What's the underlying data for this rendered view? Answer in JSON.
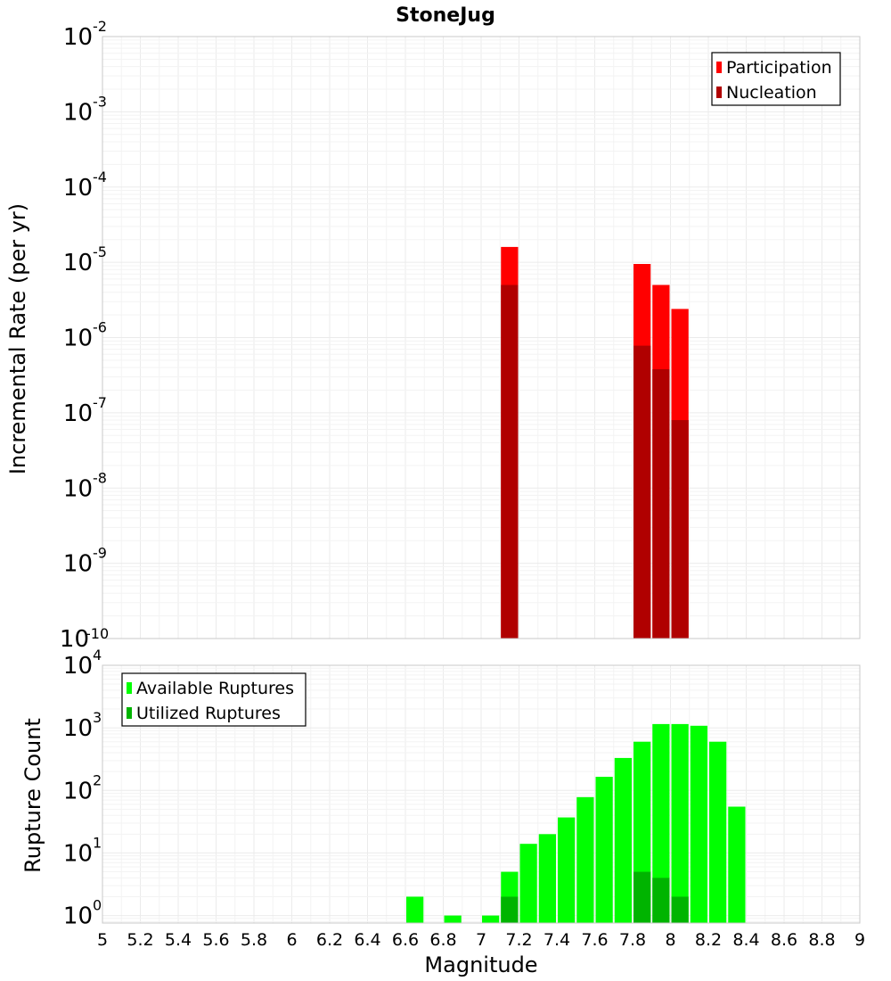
{
  "chart_data": [
    {
      "type": "bar",
      "title": "StoneJug",
      "ylabel": "Incremental Rate (per yr)",
      "xlabel": "",
      "yscale": "log",
      "ylim_exponent": [
        -10,
        -2
      ],
      "y_tick_base": "10",
      "y_tick_exponents": [
        "-10",
        "-9",
        "-8",
        "-7",
        "-6",
        "-5",
        "-4",
        "-3",
        "-2"
      ],
      "xlim": [
        5,
        9
      ],
      "bin_width": 0.1,
      "legend_position": "top-right",
      "series": [
        {
          "name": "Participation",
          "color": "#ff0000",
          "x": [
            7.15,
            7.85,
            7.95,
            8.05
          ],
          "values": [
            1.6e-05,
            9.5e-06,
            5e-06,
            2.4e-06
          ]
        },
        {
          "name": "Nucleation",
          "color": "#b00000",
          "x": [
            7.15,
            7.85,
            7.95,
            8.05
          ],
          "values": [
            5e-06,
            7.8e-07,
            3.8e-07,
            8e-08
          ]
        }
      ]
    },
    {
      "type": "bar",
      "title": "",
      "ylabel": "Rupture Count",
      "xlabel": "Magnitude",
      "yscale": "log",
      "ylim_exponent": [
        -0.12,
        4
      ],
      "y_tick_base": "10",
      "y_tick_exponents": [
        "0",
        "1",
        "2",
        "3",
        "4"
      ],
      "xlim": [
        5,
        9
      ],
      "bin_width": 0.1,
      "x_tick_labels": [
        "5",
        "5.2",
        "5.4",
        "5.6",
        "5.8",
        "6",
        "6.2",
        "6.4",
        "6.6",
        "6.8",
        "7",
        "7.2",
        "7.4",
        "7.6",
        "7.8",
        "8",
        "8.2",
        "8.4",
        "8.6",
        "8.8",
        "9"
      ],
      "legend_position": "top-left",
      "series": [
        {
          "name": "Available Ruptures",
          "color": "#00ff00",
          "x": [
            6.65,
            6.85,
            7.05,
            7.15,
            7.25,
            7.35,
            7.45,
            7.55,
            7.65,
            7.75,
            7.85,
            7.95,
            8.05,
            8.15,
            8.25,
            8.35
          ],
          "values": [
            2,
            1,
            1,
            5,
            14,
            20,
            37,
            78,
            165,
            330,
            600,
            1150,
            1150,
            1080,
            600,
            55
          ]
        },
        {
          "name": "Utilized Ruptures",
          "color": "#00b400",
          "x": [
            7.15,
            7.85,
            7.95,
            8.05
          ],
          "values": [
            2,
            5,
            4,
            2
          ]
        }
      ]
    }
  ]
}
